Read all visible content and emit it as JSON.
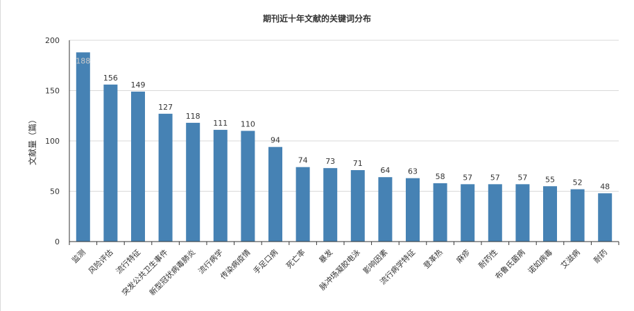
{
  "chart_data": {
    "type": "bar",
    "title": "期刊近十年文献的关键词分布",
    "xlabel": "",
    "ylabel": "文献量（篇）",
    "ylim": [
      0,
      200
    ],
    "yticks": [
      0,
      50,
      100,
      150,
      200
    ],
    "grid": true,
    "bar_color": "#4682b4",
    "categories": [
      "监测",
      "风险评估",
      "流行特征",
      "突发公共卫生事件",
      "新型冠状病毒肺炎",
      "流行病学",
      "传染病疫情",
      "手足口病",
      "死亡率",
      "暴发",
      "脉冲场凝胶电泳",
      "影响因素",
      "流行病学特征",
      "登革热",
      "麻疹",
      "耐药性",
      "布鲁氏菌病",
      "诺如病毒",
      "艾滋病",
      "耐药"
    ],
    "values": [
      188,
      156,
      149,
      127,
      118,
      111,
      110,
      94,
      74,
      73,
      71,
      64,
      63,
      58,
      57,
      57,
      57,
      55,
      52,
      48
    ]
  }
}
